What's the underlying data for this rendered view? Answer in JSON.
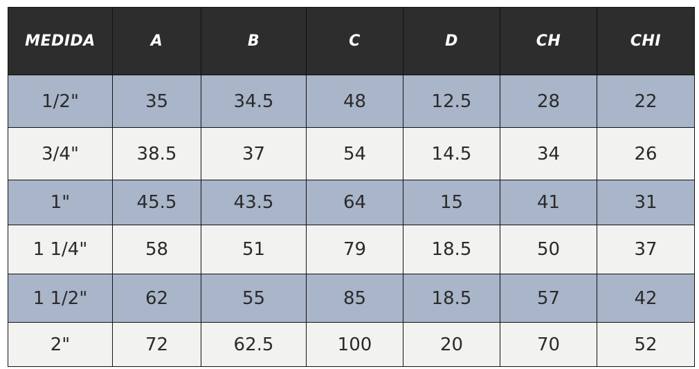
{
  "table": {
    "header": [
      "MEDIDA",
      "A",
      "B",
      "C",
      "D",
      "CH",
      "CHI"
    ],
    "rows": [
      [
        "1/2\"",
        "35",
        "34.5",
        "48",
        "12.5",
        "28",
        "22"
      ],
      [
        "3/4\"",
        "38.5",
        "37",
        "54",
        "14.5",
        "34",
        "26"
      ],
      [
        "1\"",
        "45.5",
        "43.5",
        "64",
        "15",
        "41",
        "31"
      ],
      [
        "1 1/4\"",
        "58",
        "51",
        "79",
        "18.5",
        "50",
        "37"
      ],
      [
        "1 1/2\"",
        "62",
        "55",
        "85",
        "18.5",
        "57",
        "42"
      ],
      [
        "2\"",
        "72",
        "62.5",
        "100",
        "20",
        "70",
        "52"
      ]
    ]
  }
}
